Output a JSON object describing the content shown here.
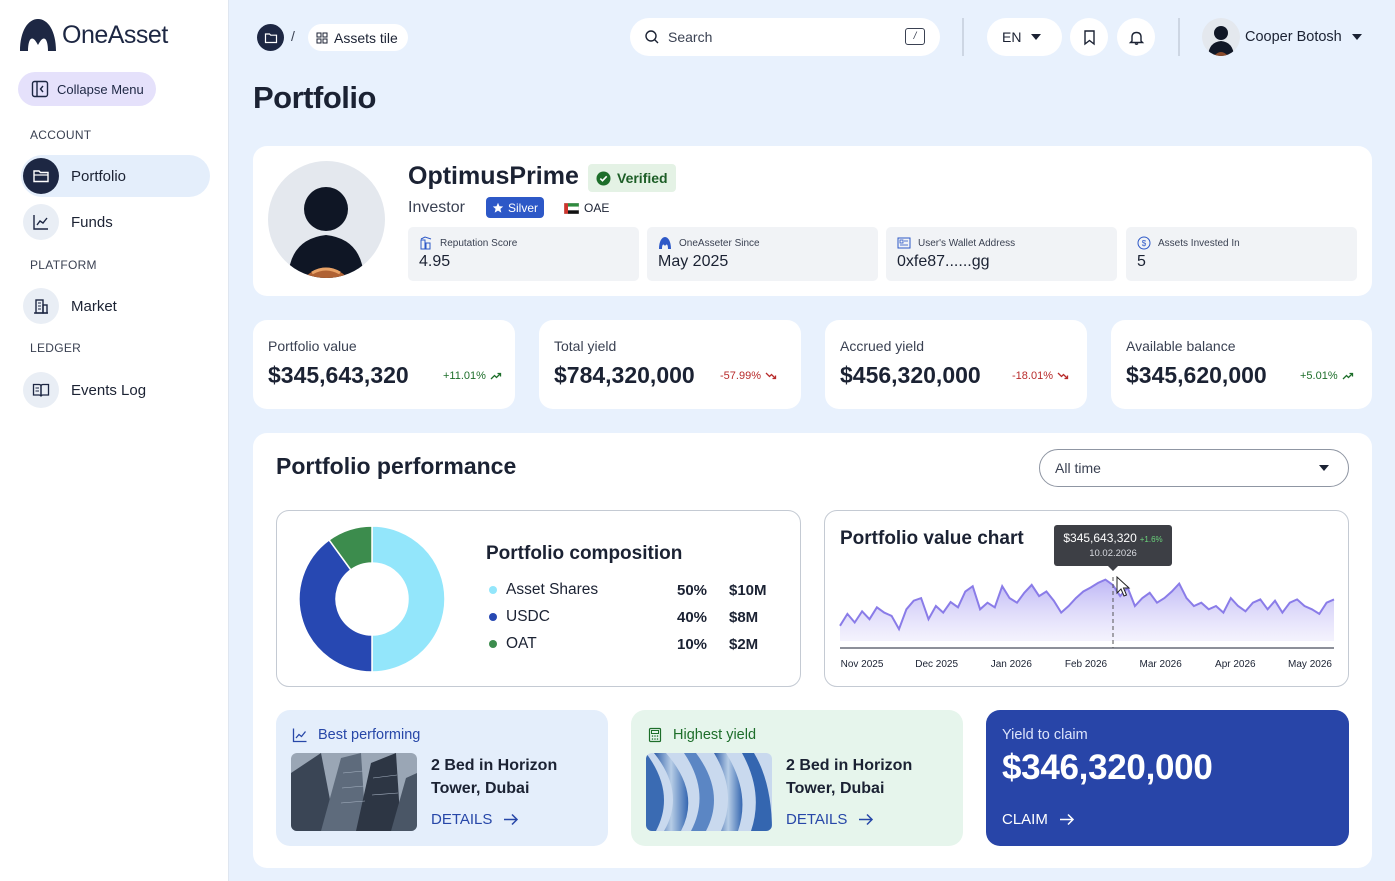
{
  "brand": {
    "name": "OneAsset"
  },
  "sidebar": {
    "collapse_label": "Collapse Menu",
    "sections": {
      "account": "ACCOUNT",
      "platform": "PLATFORM",
      "ledger": "LEDGER"
    },
    "items": [
      {
        "label": "Portfolio",
        "icon": "folder-icon",
        "active": true
      },
      {
        "label": "Funds",
        "icon": "chart-line-icon"
      },
      {
        "label": "Market",
        "icon": "building-icon"
      },
      {
        "label": "Events Log",
        "icon": "book-icon"
      }
    ]
  },
  "header": {
    "breadcrumb": {
      "current": "Assets tile",
      "separator": "/"
    },
    "search": {
      "placeholder": "Search",
      "shortcut": "/"
    },
    "language": "EN",
    "user_name": "Cooper Botosh"
  },
  "page": {
    "title": "Portfolio"
  },
  "profile": {
    "name": "OptimusPrime",
    "verified_label": "Verified",
    "role": "Investor",
    "tier": "Silver",
    "country": "OAE",
    "stats": [
      {
        "label": "Reputation Score",
        "value": "4.95",
        "icon": "building-chart-icon"
      },
      {
        "label": "OneAsseter Since",
        "value": "May 2025",
        "icon": "oneasset-logo-icon"
      },
      {
        "label": "User's Wallet Address",
        "value": "0xfe87......gg",
        "icon": "wallet-icon"
      },
      {
        "label": "Assets Invested In",
        "value": "5",
        "icon": "dollar-circle-icon"
      }
    ]
  },
  "kpis": [
    {
      "label": "Portfolio value",
      "value": "$345,643,320",
      "change": "+11.01%",
      "trend": "up"
    },
    {
      "label": "Total yield",
      "value": "$784,320,000",
      "change": "-57.99%",
      "trend": "down"
    },
    {
      "label": "Accrued yield",
      "value": "$456,320,000",
      "change": "-18.01%",
      "trend": "down"
    },
    {
      "label": "Available balance",
      "value": "$345,620,000",
      "change": "+5.01%",
      "trend": "up"
    }
  ],
  "performance": {
    "title": "Portfolio performance",
    "range_selected": "All time"
  },
  "composition": {
    "title": "Portfolio composition",
    "items": [
      {
        "name": "Asset Shares",
        "pct": "50%",
        "amount": "$10M",
        "color": "#93e6fb"
      },
      {
        "name": "USDC",
        "pct": "40%",
        "amount": "$8M",
        "color": "#2748b2"
      },
      {
        "name": "OAT",
        "pct": "10%",
        "amount": "$2M",
        "color": "#3c8c4d"
      }
    ]
  },
  "value_chart": {
    "title": "Portfolio value chart",
    "tooltip": {
      "value": "$345,643,320",
      "change": "+1.6%",
      "date": "10.02.2026"
    },
    "months": [
      "Nov 2025",
      "Dec 2025",
      "Jan 2026",
      "Feb 2026",
      "Mar 2026",
      "Apr 2026",
      "May 2026"
    ],
    "series": [
      0.2,
      0.38,
      0.25,
      0.42,
      0.3,
      0.48,
      0.4,
      0.35,
      0.15,
      0.45,
      0.58,
      0.62,
      0.3,
      0.5,
      0.4,
      0.56,
      0.48,
      0.72,
      0.8,
      0.45,
      0.55,
      0.48,
      0.8,
      0.62,
      0.55,
      0.7,
      0.82,
      0.65,
      0.72,
      0.58,
      0.4,
      0.5,
      0.62,
      0.72,
      0.78,
      0.85,
      0.9,
      0.82,
      0.65,
      0.78,
      0.5,
      0.62,
      0.7,
      0.55,
      0.62,
      0.72,
      0.84,
      0.62,
      0.5,
      0.55,
      0.45,
      0.5,
      0.4,
      0.62,
      0.5,
      0.42,
      0.55,
      0.6,
      0.45,
      0.58,
      0.4,
      0.55,
      0.6,
      0.5,
      0.45,
      0.38,
      0.55,
      0.6
    ]
  },
  "cards": {
    "best": {
      "head": "Best performing",
      "name": "2 Bed in Horizon Tower, Dubai",
      "action": "DETAILS"
    },
    "yield": {
      "head": "Highest yield",
      "name": "2 Bed in Horizon Tower, Dubai",
      "action": "DETAILS"
    },
    "claim": {
      "head": "Yield to claim",
      "value": "$346,320,000",
      "action": "CLAIM"
    }
  }
}
